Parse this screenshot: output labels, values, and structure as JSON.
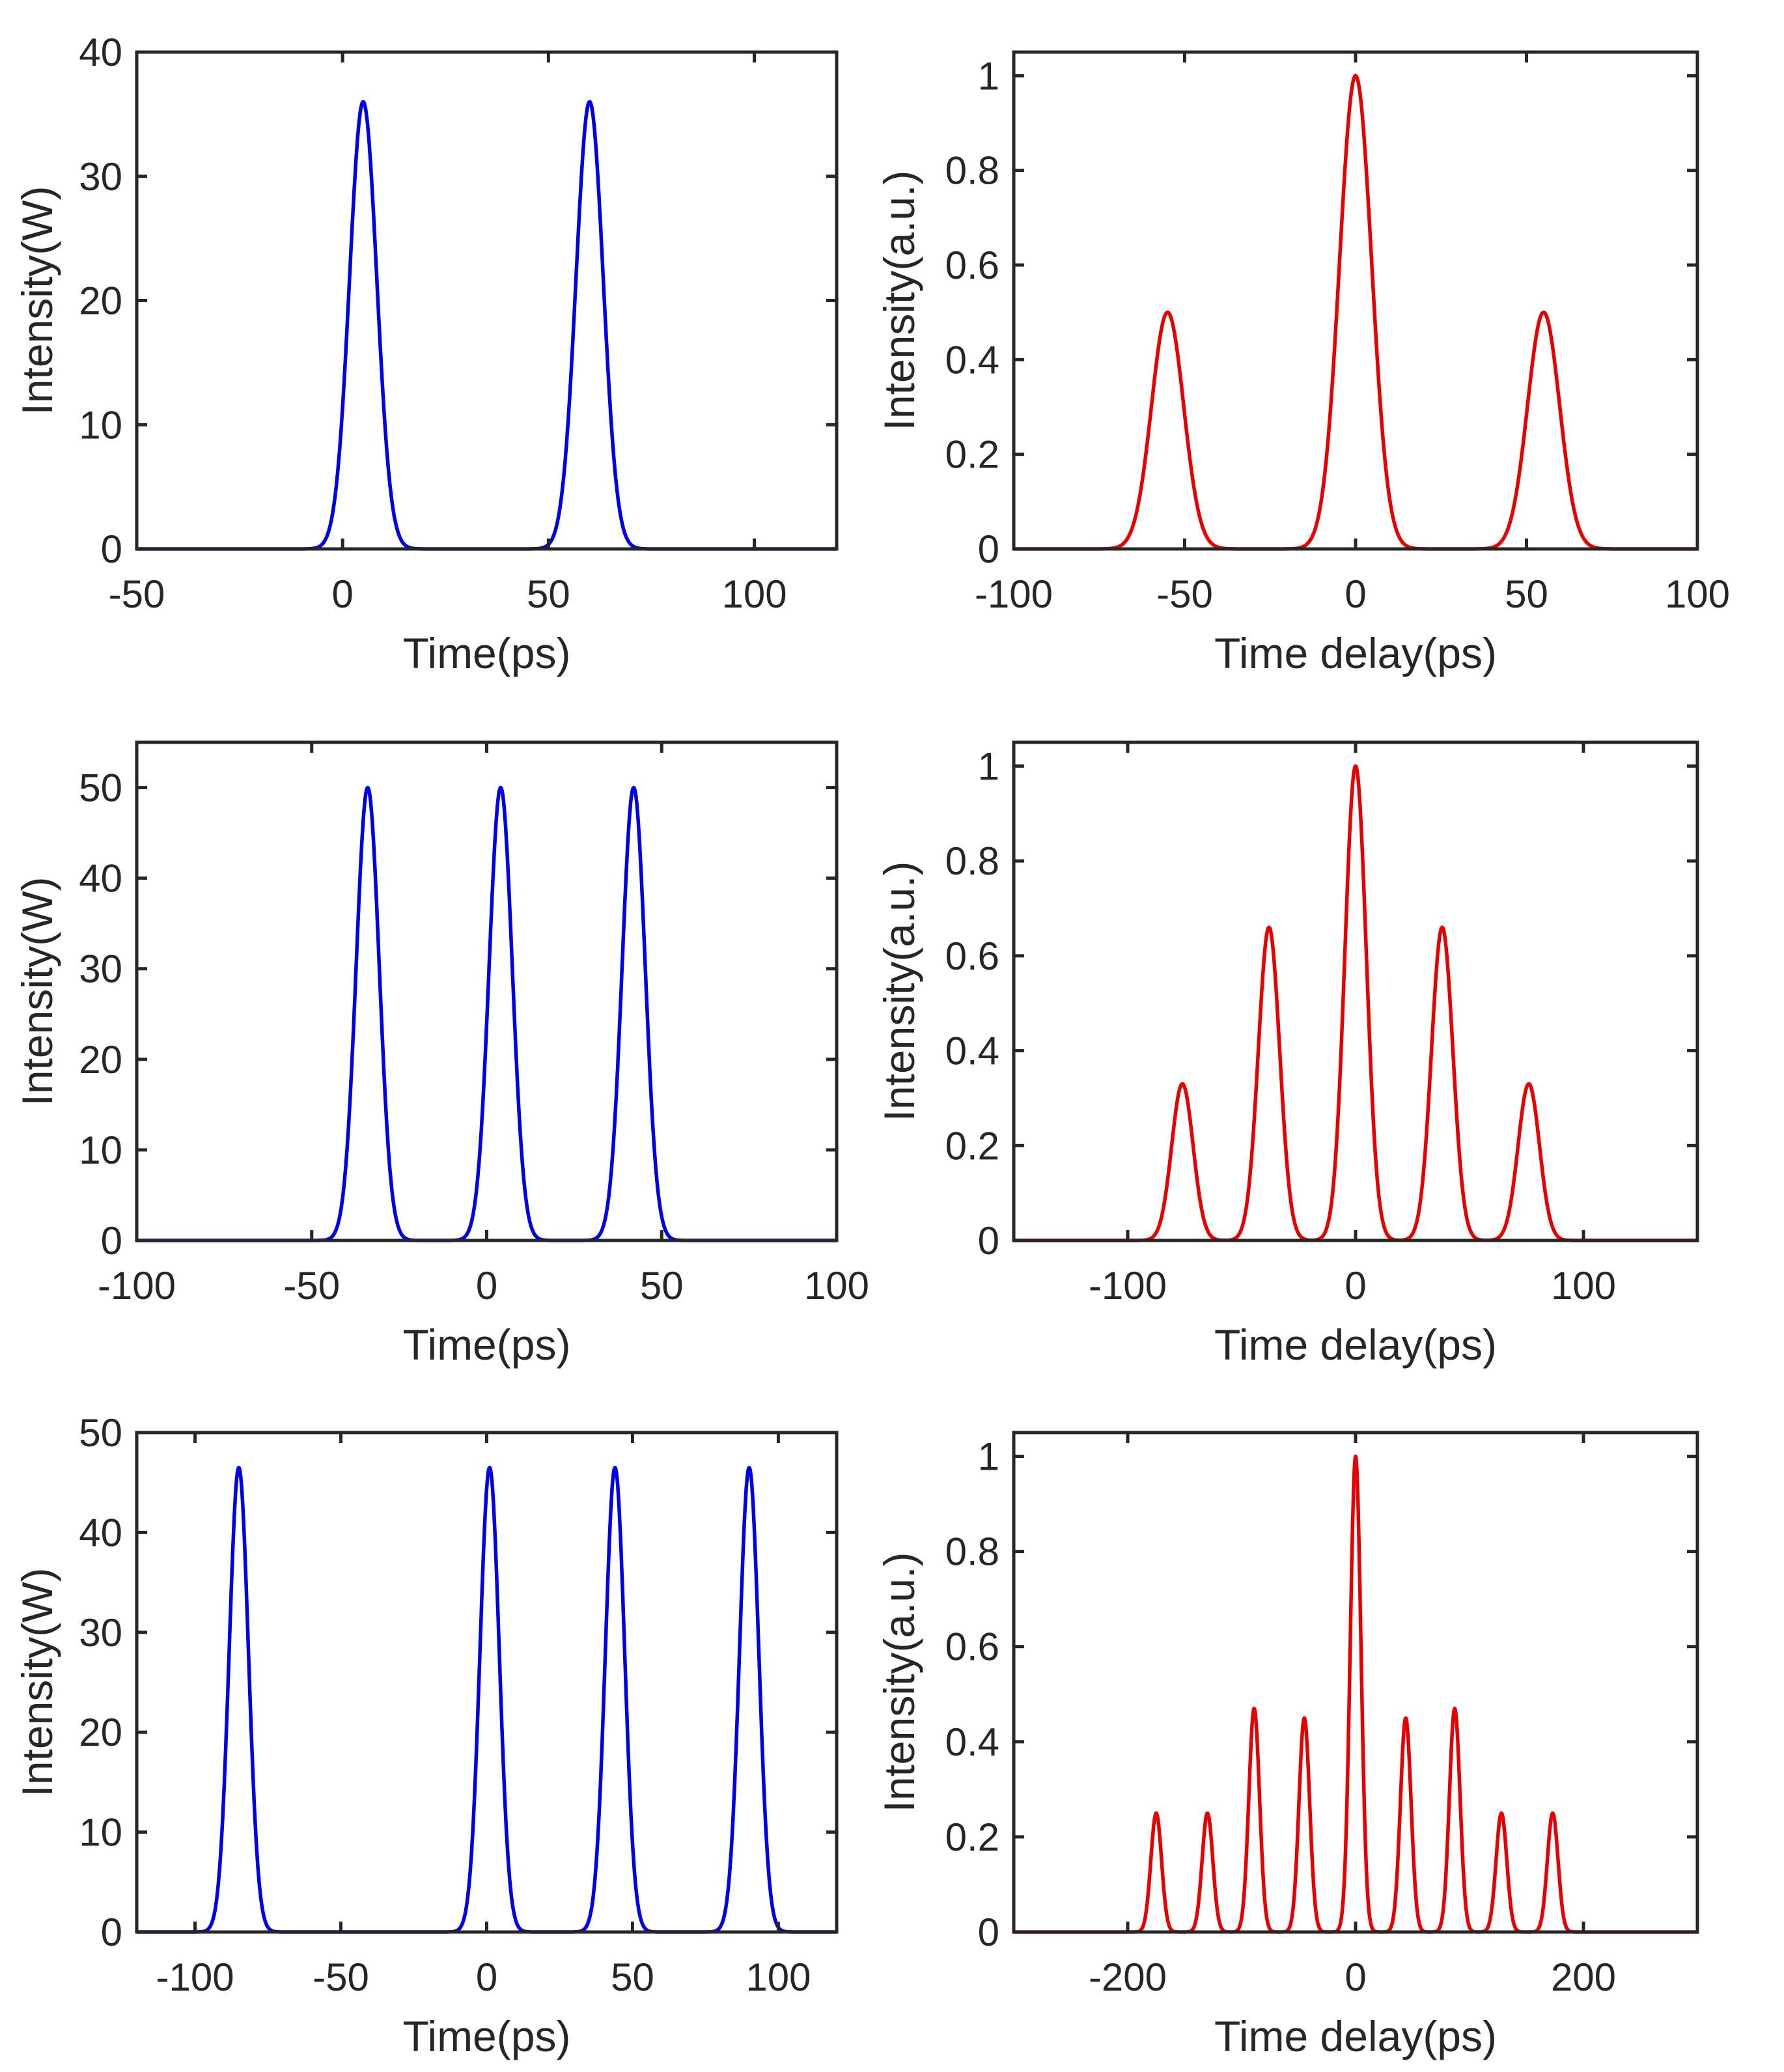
{
  "colors": {
    "blue": "#0000e6",
    "red": "#e60000",
    "axis": "#262626"
  },
  "chart_data": [
    {
      "type": "line",
      "xlabel": "Time(ps)",
      "ylabel": "Intensity(W)",
      "xlim": [
        -50,
        120
      ],
      "ylim": [
        0,
        40
      ],
      "xticks": [
        -50,
        0,
        50,
        100
      ],
      "xtick_labels": [
        "-50",
        "0",
        "50",
        "100"
      ],
      "yticks": [
        0,
        10,
        20,
        30,
        40
      ],
      "ytick_labels": [
        "0",
        "10",
        "20",
        "30",
        "40"
      ],
      "color": "blue",
      "series": [
        {
          "name": "pulses",
          "peaks": [
            5,
            60
          ],
          "heights": [
            36,
            36
          ],
          "width": 3.3
        }
      ]
    },
    {
      "type": "line",
      "xlabel": "Time delay(ps)",
      "ylabel": "Intensity(a.u.)",
      "xlim": [
        -100,
        100
      ],
      "ylim": [
        0,
        1.05
      ],
      "xticks": [
        -100,
        -50,
        0,
        50,
        100
      ],
      "xtick_labels": [
        "-100",
        "-50",
        "0",
        "50",
        "100"
      ],
      "yticks": [
        0,
        0.2,
        0.4,
        0.6,
        0.8,
        1
      ],
      "ytick_labels": [
        "0",
        "0.2",
        "0.4",
        "0.6",
        "0.8",
        "1"
      ],
      "color": "red",
      "series": [
        {
          "name": "autocorrelation",
          "peaks": [
            -55,
            0,
            55
          ],
          "heights": [
            0.5,
            1.0,
            0.5
          ],
          "width": 4.7
        }
      ]
    },
    {
      "type": "line",
      "xlabel": "Time(ps)",
      "ylabel": "Intensity(W)",
      "xlim": [
        -100,
        100
      ],
      "ylim": [
        0,
        55
      ],
      "xticks": [
        -100,
        -50,
        0,
        50,
        100
      ],
      "xtick_labels": [
        "-100",
        "-50",
        "0",
        "50",
        "100"
      ],
      "yticks": [
        0,
        10,
        20,
        30,
        40,
        50
      ],
      "ytick_labels": [
        "0",
        "10",
        "20",
        "30",
        "40",
        "50"
      ],
      "color": "blue",
      "series": [
        {
          "name": "pulses",
          "peaks": [
            -34,
            4,
            42
          ],
          "heights": [
            50,
            50,
            50
          ],
          "width": 3.3
        }
      ]
    },
    {
      "type": "line",
      "xlabel": "Time delay(ps)",
      "ylabel": "Intensity(a.u.)",
      "xlim": [
        -150,
        150
      ],
      "ylim": [
        0,
        1.05
      ],
      "xticks": [
        -100,
        0,
        100
      ],
      "xtick_labels": [
        "-100",
        "0",
        "100"
      ],
      "yticks": [
        0,
        0.2,
        0.4,
        0.6,
        0.8,
        1
      ],
      "ytick_labels": [
        "0",
        "0.2",
        "0.4",
        "0.6",
        "0.8",
        "1"
      ],
      "color": "red",
      "series": [
        {
          "name": "autocorrelation",
          "peaks": [
            -76,
            -38,
            0,
            38,
            76
          ],
          "heights": [
            0.33,
            0.66,
            1.0,
            0.66,
            0.33
          ],
          "width": 4.7
        }
      ]
    },
    {
      "type": "line",
      "xlabel": "Time(ps)",
      "ylabel": "Intensity(W)",
      "xlim": [
        -120,
        120
      ],
      "ylim": [
        0,
        50
      ],
      "xticks": [
        -100,
        -50,
        0,
        50,
        100
      ],
      "xtick_labels": [
        "-100",
        "-50",
        "0",
        "50",
        "100"
      ],
      "yticks": [
        0,
        10,
        20,
        30,
        40,
        50
      ],
      "ytick_labels": [
        "0",
        "10",
        "20",
        "30",
        "40",
        "50"
      ],
      "color": "blue",
      "series": [
        {
          "name": "pulses",
          "peaks": [
            -85,
            1,
            44,
            90
          ],
          "heights": [
            46.5,
            46.5,
            46.5,
            46.5
          ],
          "width": 3.3
        }
      ]
    },
    {
      "type": "line",
      "xlabel": "Time delay(ps)",
      "ylabel": "Intensity(a.u.)",
      "xlim": [
        -300,
        300
      ],
      "ylim": [
        0,
        1.05
      ],
      "xticks": [
        -200,
        0,
        200
      ],
      "xtick_labels": [
        "-200",
        "0",
        "200"
      ],
      "yticks": [
        0,
        0.2,
        0.4,
        0.6,
        0.8,
        1
      ],
      "ytick_labels": [
        "0",
        "0.2",
        "0.4",
        "0.6",
        "0.8",
        "1"
      ],
      "color": "red",
      "series": [
        {
          "name": "autocorrelation",
          "peaks": [
            -175,
            -130,
            -89,
            -45,
            0,
            44,
            87,
            128,
            173
          ],
          "heights": [
            0.25,
            0.25,
            0.47,
            0.45,
            1.0,
            0.45,
            0.47,
            0.25,
            0.25
          ],
          "width": 4.7
        }
      ]
    }
  ]
}
